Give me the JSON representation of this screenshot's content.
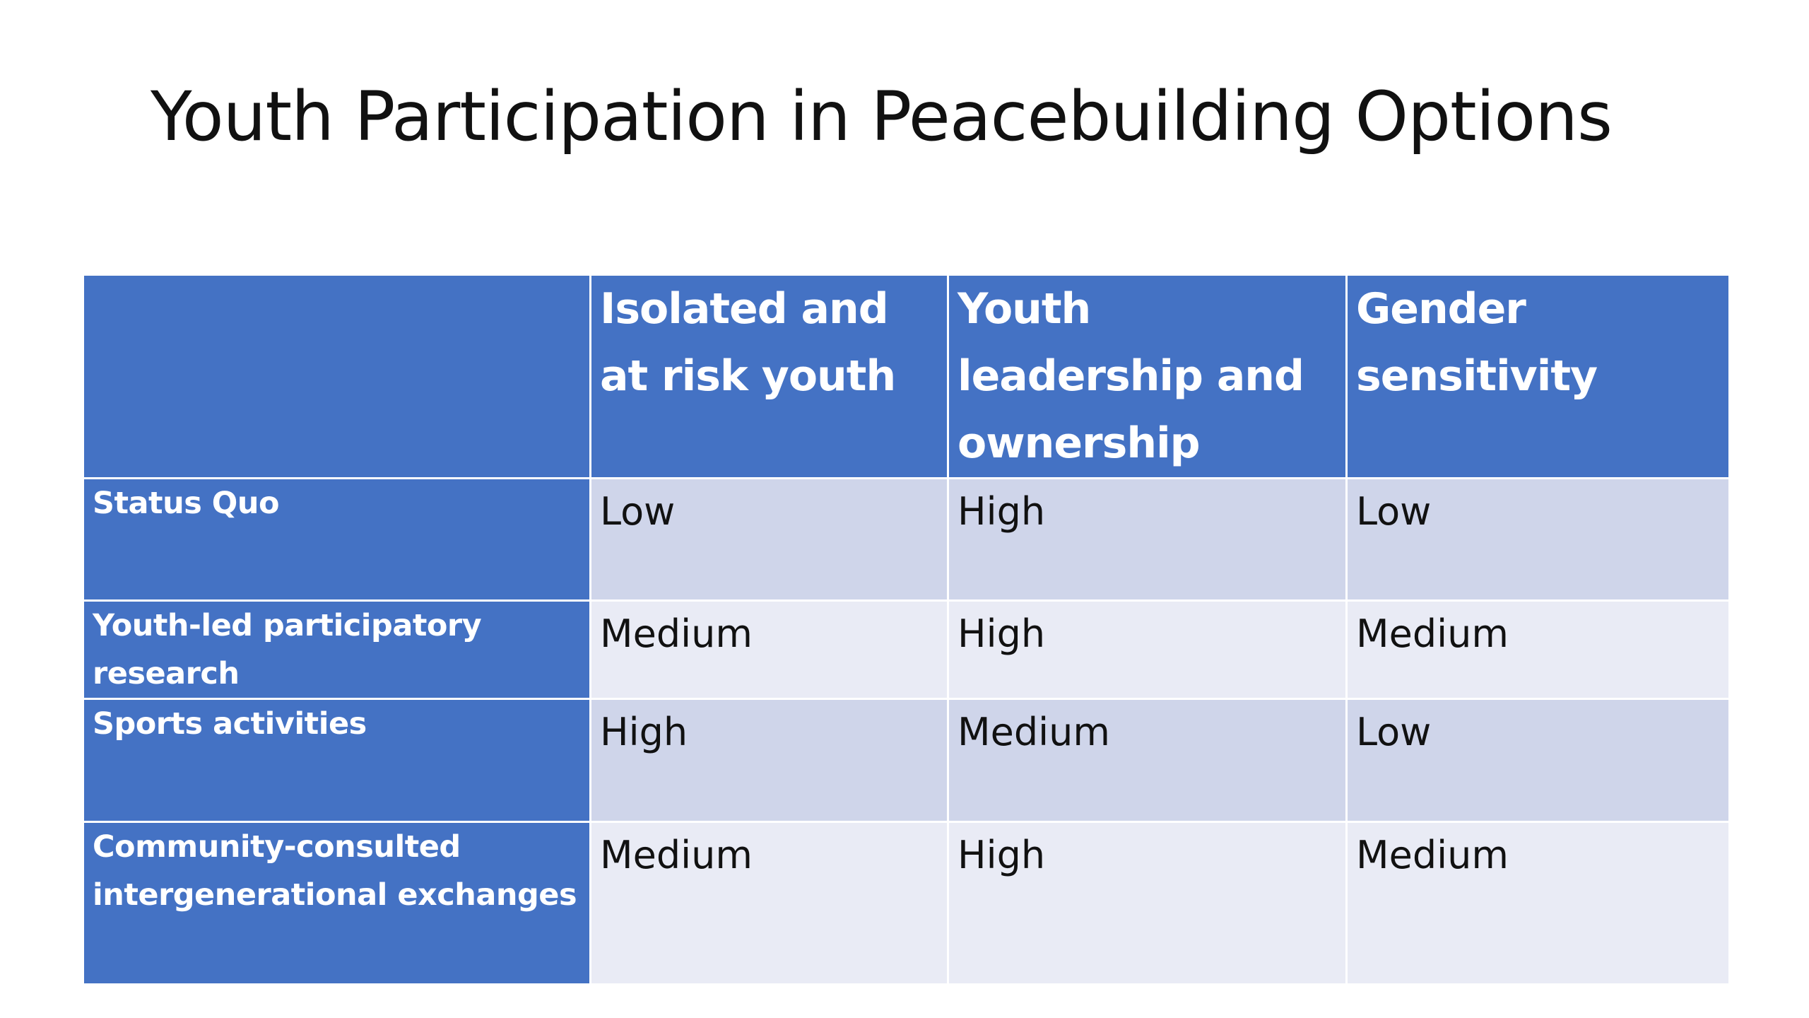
{
  "slide": {
    "title": "Youth Participation in Peacebuilding Options"
  },
  "table": {
    "corner": "",
    "columns": [
      "Isolated and at risk youth",
      "Youth leadership and ownership",
      "Gender sensitivity"
    ],
    "rows": [
      {
        "label": "Status Quo",
        "values": [
          "Low",
          "High",
          "Low"
        ]
      },
      {
        "label": "Youth-led participatory research",
        "values": [
          "Medium",
          "High",
          "Medium"
        ]
      },
      {
        "label": "Sports activities",
        "values": [
          "High",
          "Medium",
          "Low"
        ]
      },
      {
        "label": "Community-consulted intergenerational exchanges",
        "values": [
          "Medium",
          "High",
          "Medium"
        ]
      }
    ]
  },
  "colors": {
    "header_background": "#4472c4",
    "header_text": "#ffffff",
    "odd_row_background": "#cfd5ea",
    "even_row_background": "#e9ebf5",
    "body_text": "#111111"
  }
}
